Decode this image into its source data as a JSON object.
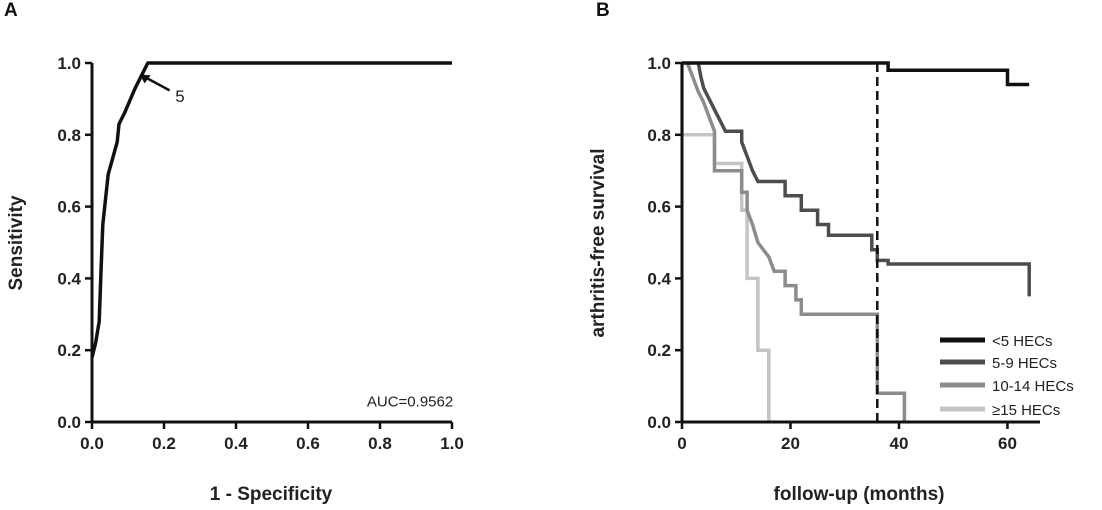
{
  "chart_data": [
    {
      "type": "line",
      "panel_label": "A",
      "xlabel": "1 - Specificity",
      "ylabel": "Sensitivity",
      "xlim": [
        0,
        1
      ],
      "ylim": [
        0,
        1
      ],
      "xticks": [
        "0.0",
        "0.2",
        "0.4",
        "0.6",
        "0.8",
        "1.0"
      ],
      "yticks": [
        "0.0",
        "0.2",
        "0.4",
        "0.6",
        "0.8",
        "1.0"
      ],
      "series": [
        {
          "points": [
            [
              0,
              0.18
            ],
            [
              0.01,
              0.22
            ],
            [
              0.02,
              0.28
            ],
            [
              0.025,
              0.42
            ],
            [
              0.03,
              0.55
            ],
            [
              0.045,
              0.69
            ],
            [
              0.07,
              0.78
            ],
            [
              0.075,
              0.83
            ],
            [
              0.09,
              0.86
            ],
            [
              0.12,
              0.93
            ],
            [
              0.155,
              1.0
            ],
            [
              1.0,
              1.0
            ]
          ],
          "color": "#111111"
        }
      ],
      "annotations": [
        {
          "text": "5",
          "x": 0.22,
          "y": 0.97,
          "arrow_to": [
            0.21,
            0.985
          ]
        },
        {
          "text": "AUC=0.9562",
          "x": 0.97,
          "y": 0.06
        }
      ]
    },
    {
      "type": "line",
      "panel_label": "B",
      "xlabel": "follow-up (months)",
      "ylabel": "arthritis-free survival",
      "xlim": [
        0,
        66
      ],
      "ylim": [
        0,
        1
      ],
      "xticks": [
        "0",
        "20",
        "40",
        "60"
      ],
      "yticks": [
        "0.0",
        "0.2",
        "0.4",
        "0.6",
        "0.8",
        "1.0"
      ],
      "reference_line": {
        "x": 36,
        "style": "dashed"
      },
      "legend_position": "bottom-right",
      "series": [
        {
          "name": "<5 HECs",
          "color": "#111111",
          "points": [
            [
              0,
              1.0
            ],
            [
              38,
              1.0
            ],
            [
              38,
              0.98
            ],
            [
              60,
              0.98
            ],
            [
              60,
              0.94
            ],
            [
              64,
              0.94
            ]
          ]
        },
        {
          "name": "5-9 HECs",
          "color": "#4d4d4d",
          "points": [
            [
              3,
              1.0
            ],
            [
              3.5,
              0.96
            ],
            [
              4,
              0.93
            ],
            [
              5,
              0.9
            ],
            [
              6,
              0.87
            ],
            [
              7,
              0.84
            ],
            [
              8,
              0.81
            ],
            [
              11,
              0.81
            ],
            [
              11,
              0.78
            ],
            [
              12,
              0.74
            ],
            [
              13,
              0.7
            ],
            [
              14,
              0.67
            ],
            [
              19,
              0.67
            ],
            [
              19,
              0.63
            ],
            [
              22,
              0.63
            ],
            [
              22,
              0.59
            ],
            [
              25,
              0.59
            ],
            [
              25,
              0.55
            ],
            [
              27,
              0.55
            ],
            [
              27,
              0.52
            ],
            [
              35,
              0.52
            ],
            [
              35,
              0.48
            ],
            [
              36,
              0.48
            ],
            [
              36,
              0.45
            ],
            [
              38,
              0.45
            ],
            [
              38,
              0.44
            ],
            [
              64,
              0.44
            ],
            [
              64,
              0.35
            ]
          ]
        },
        {
          "name": "10-14 HECs",
          "color": "#8c8c8c",
          "points": [
            [
              1,
              1.0
            ],
            [
              3,
              0.92
            ],
            [
              4,
              0.89
            ],
            [
              6,
              0.81
            ],
            [
              6,
              0.7
            ],
            [
              11,
              0.7
            ],
            [
              11,
              0.64
            ],
            [
              12,
              0.64
            ],
            [
              12,
              0.59
            ],
            [
              13,
              0.55
            ],
            [
              14,
              0.5
            ],
            [
              16,
              0.46
            ],
            [
              17,
              0.42
            ],
            [
              19,
              0.42
            ],
            [
              19,
              0.38
            ],
            [
              21,
              0.38
            ],
            [
              21,
              0.34
            ],
            [
              22,
              0.34
            ],
            [
              22,
              0.3
            ],
            [
              36,
              0.3
            ],
            [
              36,
              0.08
            ],
            [
              41,
              0.08
            ],
            [
              41,
              0.0
            ]
          ]
        },
        {
          "name": "≥15 HECs",
          "color": "#c4c4c4",
          "points": [
            [
              0,
              1.0
            ],
            [
              0,
              0.8
            ],
            [
              6,
              0.8
            ],
            [
              6,
              0.72
            ],
            [
              11,
              0.72
            ],
            [
              11,
              0.59
            ],
            [
              12,
              0.59
            ],
            [
              12,
              0.4
            ],
            [
              14,
              0.4
            ],
            [
              14,
              0.2
            ],
            [
              16,
              0.2
            ],
            [
              16,
              0.0
            ]
          ]
        }
      ]
    }
  ]
}
